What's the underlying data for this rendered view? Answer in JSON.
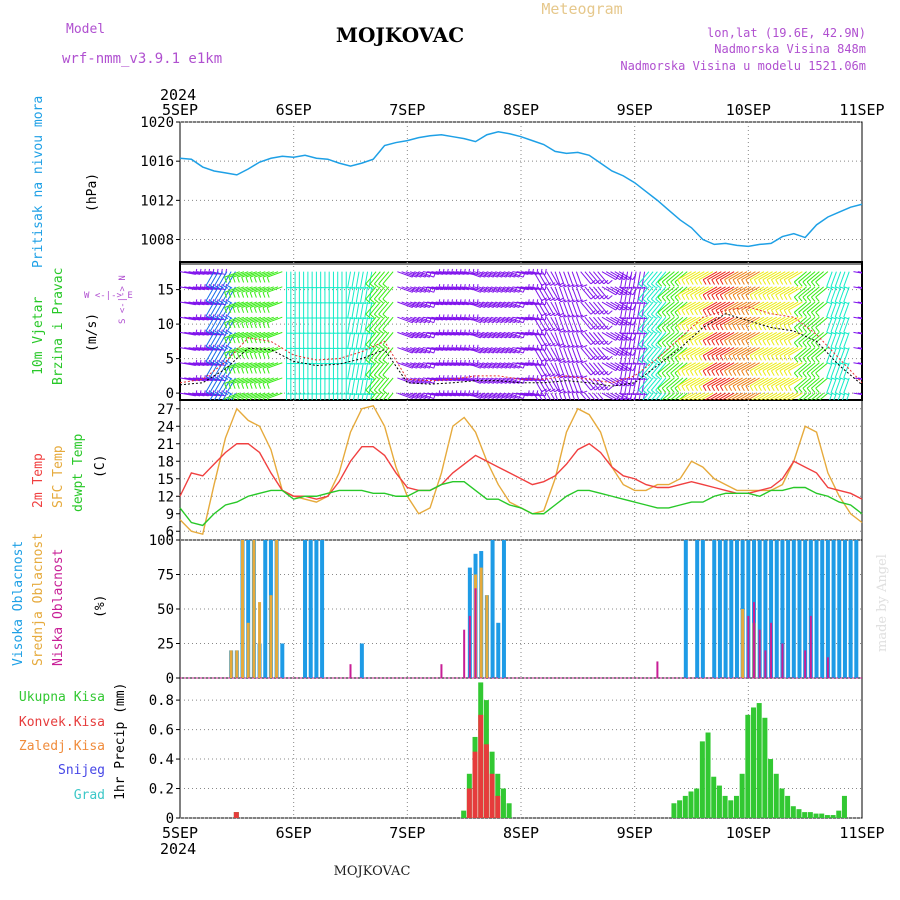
{
  "header": {
    "model_label": "Model",
    "model_name": "wrf-nmm_v3.9.1 e1km",
    "station": "MOJKOVAC",
    "product": "Meteogram",
    "lonlat": "lon,lat (19.6E, 42.9N)",
    "elevation": "Nadmorska Visina 848m",
    "model_elevation": "Nadmorska Visina u modelu 1521.06m"
  },
  "footer": {
    "station": "MOJKOVAC",
    "credit": "made by Angel"
  },
  "time_axis": {
    "year": "2024",
    "tick_labels": [
      "5SEP",
      "6SEP",
      "7SEP",
      "8SEP",
      "9SEP",
      "10SEP",
      "11SEP"
    ]
  },
  "colors": {
    "pressure": "#1ea0e6",
    "temp2m": "#f04040",
    "sfc_temp": "#e6aa3c",
    "dewpoint": "#28c828",
    "high_cloud": "#1e9be6",
    "mid_cloud": "#e6aa3c",
    "low_cloud": "#c81e96",
    "total_rain": "#32c832",
    "conv_rain": "#e63c3c",
    "freezing_rain": "#f08c3c",
    "snow": "#4646e6",
    "graupel": "#3cc8c8",
    "wind_speed": "#000000",
    "wind_gust": "#e63232",
    "purple_text": "#b050d0"
  },
  "panels": {
    "pressure": {
      "label": "Pritisak na nivou mora",
      "unit": "(hPa)"
    },
    "wind": {
      "label1": "10m Vjetar",
      "label2": "Brzina i Pravac",
      "unit": "(m/s)",
      "compass": "W <-|-> E",
      "compass_v": "S <-|-> N"
    },
    "temp": {
      "label_2m": "2m Temp",
      "label_sfc": "SFC Temp",
      "label_dew": "dewpt Temp",
      "unit": "(C)"
    },
    "cloud": {
      "label_high": "Visoka Oblacnost",
      "label_mid": "Srednja Oblacnost",
      "label_low": "Niska Oblacnost",
      "unit": "(%)"
    },
    "precip": {
      "legend": [
        "Ukupna Kisa",
        "Konvek.Kisa",
        "Zaledj.Kisa",
        "Snijeg",
        "Grad"
      ],
      "unit": "1hr Precip (mm)"
    }
  },
  "chart_data": [
    {
      "type": "line",
      "name": "pressure",
      "xlabel": "",
      "ylabel": "(hPa)",
      "ylim": [
        1005.5,
        1020
      ],
      "yticks": [
        1008,
        1012,
        1016,
        1020
      ],
      "x": [
        0,
        0.1,
        0.2,
        0.3,
        0.4,
        0.5,
        0.6,
        0.7,
        0.8,
        0.9,
        1.0,
        1.1,
        1.2,
        1.3,
        1.4,
        1.5,
        1.6,
        1.7,
        1.8,
        1.9,
        2.0,
        2.1,
        2.2,
        2.3,
        2.4,
        2.5,
        2.6,
        2.7,
        2.8,
        2.9,
        3.0,
        3.1,
        3.2,
        3.3,
        3.4,
        3.5,
        3.6,
        3.7,
        3.8,
        3.9,
        4.0,
        4.1,
        4.2,
        4.3,
        4.4,
        4.5,
        4.6,
        4.7,
        4.8,
        4.9,
        5.0,
        5.1,
        5.2,
        5.3,
        5.4,
        5.5,
        5.6,
        5.7,
        5.8,
        5.9,
        6.0
      ],
      "values": [
        1016.3,
        1016.2,
        1015.4,
        1015.0,
        1014.8,
        1014.6,
        1015.2,
        1015.9,
        1016.3,
        1016.5,
        1016.4,
        1016.6,
        1016.3,
        1016.2,
        1015.8,
        1015.5,
        1015.8,
        1016.2,
        1017.6,
        1017.9,
        1018.1,
        1018.4,
        1018.6,
        1018.7,
        1018.5,
        1018.3,
        1018.0,
        1018.7,
        1019.0,
        1018.8,
        1018.5,
        1018.1,
        1017.7,
        1017.0,
        1016.8,
        1016.9,
        1016.6,
        1015.8,
        1015.0,
        1014.5,
        1013.8,
        1012.9,
        1012.0,
        1011.0,
        1010.0,
        1009.2,
        1008.0,
        1007.5,
        1007.6,
        1007.4,
        1007.3,
        1007.5,
        1007.6,
        1008.3,
        1008.6,
        1008.2,
        1009.5,
        1010.3,
        1010.8,
        1011.3,
        1011.6
      ]
    },
    {
      "type": "line",
      "name": "wind",
      "xlabel": "",
      "ylabel": "(m/s)",
      "ylim": [
        -1,
        19
      ],
      "yticks": [
        0,
        5,
        10,
        15
      ],
      "x": [
        0,
        0.2,
        0.4,
        0.6,
        0.8,
        1.0,
        1.2,
        1.4,
        1.6,
        1.8,
        2.0,
        2.2,
        2.4,
        2.6,
        2.8,
        3.0,
        3.2,
        3.4,
        3.6,
        3.8,
        4.0,
        4.2,
        4.4,
        4.6,
        4.8,
        5.0,
        5.2,
        5.4,
        5.6,
        5.8,
        6.0
      ],
      "series": [
        {
          "values": [
            1.2,
            1.5,
            3.5,
            6.5,
            6.3,
            4.6,
            4.0,
            4.2,
            5.0,
            6.3,
            1.5,
            1.3,
            1.5,
            1.8,
            1.8,
            1.5,
            1.5,
            1.8,
            1.5,
            1.0,
            1.5,
            4.0,
            6.5,
            9.5,
            11.5,
            10.5,
            9.5,
            9.0,
            7.5,
            4.0,
            1.2
          ]
        },
        {
          "values": [
            1.5,
            2.0,
            4.5,
            8.0,
            7.5,
            5.5,
            4.8,
            5.0,
            6.0,
            7.5,
            2.0,
            1.8,
            2.0,
            2.5,
            2.5,
            2.0,
            2.0,
            2.5,
            2.0,
            1.5,
            2.5,
            5.0,
            8.0,
            11.0,
            12.0,
            12.5,
            11.5,
            11.0,
            8.5,
            5.0,
            1.5
          ]
        }
      ],
      "barbs_direction_deg": [
        100,
        100,
        210,
        250,
        250,
        180,
        180,
        180,
        190,
        220,
        110,
        100,
        100,
        110,
        110,
        100,
        150,
        160,
        140,
        120,
        190,
        220,
        230,
        240,
        240,
        240,
        240,
        240,
        230,
        200,
        100
      ],
      "barbs_speed_ms": [
        1.2,
        1.5,
        3.5,
        6.5,
        6.3,
        4.6,
        4.0,
        4.2,
        5.0,
        6.3,
        1.5,
        1.3,
        1.5,
        1.8,
        1.8,
        1.5,
        1.5,
        1.8,
        1.5,
        1.0,
        1.5,
        4.0,
        6.5,
        9.5,
        11.5,
        10.5,
        9.5,
        9.0,
        7.5,
        4.0,
        1.2
      ]
    },
    {
      "type": "line",
      "name": "temperature",
      "xlabel": "",
      "ylabel": "(C)",
      "ylim": [
        4.5,
        28.5
      ],
      "yticks": [
        6,
        9,
        12,
        15,
        18,
        21,
        24,
        27
      ],
      "x": [
        0,
        0.1,
        0.2,
        0.3,
        0.4,
        0.5,
        0.6,
        0.7,
        0.8,
        0.9,
        1.0,
        1.1,
        1.2,
        1.3,
        1.4,
        1.5,
        1.6,
        1.7,
        1.8,
        1.9,
        2.0,
        2.1,
        2.2,
        2.3,
        2.4,
        2.5,
        2.6,
        2.7,
        2.8,
        2.9,
        3.0,
        3.1,
        3.2,
        3.3,
        3.4,
        3.5,
        3.6,
        3.7,
        3.8,
        3.9,
        4.0,
        4.1,
        4.2,
        4.3,
        4.4,
        4.5,
        4.6,
        4.7,
        4.8,
        4.9,
        5.0,
        5.1,
        5.2,
        5.3,
        5.4,
        5.5,
        5.6,
        5.7,
        5.8,
        5.9,
        6.0
      ],
      "series": [
        {
          "values": [
            12,
            16,
            15.5,
            17.5,
            19.5,
            21,
            21,
            19.5,
            16,
            13,
            12,
            12,
            11.5,
            12,
            14.5,
            18,
            20.5,
            20.5,
            19,
            16,
            13.5,
            13,
            13,
            14,
            16,
            17.5,
            19,
            18,
            17,
            16,
            15,
            14,
            14.5,
            15.5,
            17.5,
            20,
            21,
            19.5,
            17,
            15.5,
            15,
            14,
            13.5,
            13.5,
            14,
            14.5,
            14,
            13.5,
            13,
            12.5,
            12.5,
            13,
            13.5,
            15,
            18,
            17,
            16,
            13.5,
            13,
            12.5,
            11.5
          ]
        },
        {
          "values": [
            8,
            6,
            5.5,
            14,
            22,
            27,
            25,
            24,
            20,
            13,
            12,
            11.5,
            11,
            12,
            16,
            23,
            27,
            27.5,
            24,
            17,
            12,
            9,
            10,
            16,
            24,
            25.5,
            23,
            18,
            14,
            11,
            10,
            9,
            9.5,
            15,
            23,
            27,
            26,
            23,
            17,
            14,
            13,
            13,
            14,
            14,
            15,
            18,
            17,
            15,
            14,
            13,
            13,
            13,
            13,
            14,
            18,
            24,
            23,
            16,
            12,
            9,
            7.5
          ]
        },
        {
          "values": [
            10,
            7.5,
            7,
            9,
            10.5,
            11,
            12,
            12.5,
            13,
            13,
            11.5,
            12,
            12,
            12.5,
            13,
            13,
            13,
            12.5,
            12.5,
            12,
            12,
            13,
            13,
            14,
            14.5,
            14.5,
            13,
            11.5,
            11.5,
            10.5,
            10,
            9,
            9,
            10.5,
            12,
            13,
            13,
            12.5,
            12,
            11.5,
            11,
            10.5,
            10,
            10,
            10.5,
            11,
            11,
            12,
            12.5,
            12.5,
            12.5,
            12,
            13,
            13,
            13.5,
            13.5,
            12.5,
            12,
            11,
            10.5,
            9
          ]
        }
      ]
    },
    {
      "type": "bar",
      "name": "cloud_cover",
      "xlabel": "",
      "ylabel": "(%)",
      "ylim": [
        0,
        100
      ],
      "yticks": [
        0,
        25,
        50,
        75,
        100
      ],
      "series": [
        {
          "x": [
            0.45,
            0.5,
            0.55,
            0.6,
            0.65,
            0.7,
            0.75,
            0.8,
            0.85,
            0.9,
            1.1,
            1.15,
            1.2,
            1.25,
            1.6,
            2.55,
            2.6,
            2.65,
            2.7,
            2.75,
            2.8,
            2.85,
            4.45,
            4.55,
            4.6,
            4.7,
            4.75,
            4.8,
            4.85,
            4.9,
            4.95,
            5.0,
            5.05,
            5.1,
            5.15,
            5.2,
            5.25,
            5.3,
            5.35,
            5.4,
            5.45,
            5.5,
            5.55,
            5.6,
            5.65,
            5.7,
            5.75,
            5.8,
            5.85,
            5.9,
            5.95
          ],
          "values": [
            20,
            20,
            100,
            100,
            100,
            25,
            100,
            100,
            100,
            25,
            100,
            100,
            100,
            100,
            25,
            80,
            90,
            92,
            60,
            100,
            40,
            100,
            100,
            100,
            100,
            100,
            100,
            100,
            100,
            100,
            100,
            100,
            100,
            100,
            100,
            100,
            100,
            100,
            100,
            100,
            100,
            100,
            100,
            100,
            100,
            100,
            100,
            100,
            100,
            100,
            100
          ]
        },
        {
          "x": [
            0.45,
            0.5,
            0.55,
            0.6,
            0.65,
            0.7,
            0.8,
            0.85,
            2.6,
            2.65,
            2.7,
            4.95,
            5.05
          ],
          "values": [
            20,
            20,
            100,
            40,
            100,
            55,
            60,
            100,
            75,
            80,
            60,
            50,
            40
          ]
        },
        {
          "x": [
            1.5,
            2.3,
            2.5,
            2.55,
            2.6,
            4.2,
            5.0,
            5.05,
            5.1,
            5.15,
            5.2,
            5.3,
            5.5,
            5.55,
            5.7
          ],
          "values": [
            10,
            10,
            35,
            45,
            65,
            12,
            45,
            55,
            35,
            20,
            40,
            25,
            20,
            45,
            15
          ]
        }
      ]
    },
    {
      "type": "bar",
      "name": "precip_1hr",
      "xlabel": "",
      "ylabel": "1hr Precip (mm)",
      "ylim": [
        0,
        0.95
      ],
      "yticks": [
        0,
        0.2,
        0.4,
        0.6,
        0.8
      ],
      "series": [
        {
          "x": [
            0.5,
            2.5,
            2.55,
            2.6,
            2.65,
            2.7,
            2.75,
            2.8,
            2.85,
            2.9,
            4.35,
            4.4,
            4.45,
            4.5,
            4.55,
            4.6,
            4.65,
            4.7,
            4.75,
            4.8,
            4.85,
            4.9,
            4.95,
            5.0,
            5.05,
            5.1,
            5.15,
            5.2,
            5.25,
            5.3,
            5.35,
            5.4,
            5.45,
            5.5,
            5.55,
            5.6,
            5.65,
            5.7,
            5.75,
            5.8,
            5.85
          ],
          "values": [
            0.04,
            0.05,
            0.3,
            0.55,
            0.92,
            0.8,
            0.45,
            0.3,
            0.2,
            0.1,
            0.1,
            0.12,
            0.15,
            0.18,
            0.2,
            0.52,
            0.58,
            0.28,
            0.22,
            0.15,
            0.12,
            0.15,
            0.3,
            0.7,
            0.75,
            0.78,
            0.68,
            0.4,
            0.3,
            0.2,
            0.15,
            0.08,
            0.06,
            0.04,
            0.04,
            0.03,
            0.03,
            0.02,
            0.02,
            0.05,
            0.15
          ]
        },
        {
          "x": [
            0.5,
            2.55,
            2.6,
            2.65,
            2.7,
            2.75,
            2.8
          ],
          "values": [
            0.04,
            0.2,
            0.45,
            0.7,
            0.5,
            0.3,
            0.15
          ]
        }
      ]
    }
  ]
}
